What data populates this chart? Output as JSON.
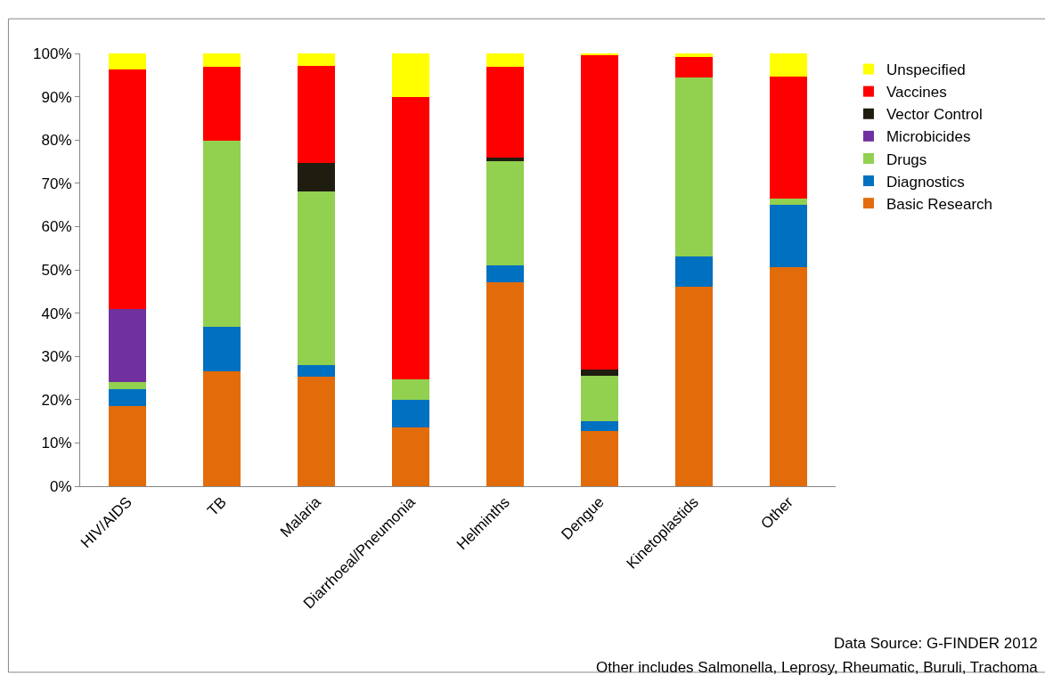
{
  "chart_data": {
    "type": "bar",
    "stacked": true,
    "categories": [
      "HIV/AIDS",
      "TB",
      "Malaria",
      "Diarrhoeal/Pneumonia",
      "Helminths",
      "Dengue",
      "Kinetoplastids",
      "Other"
    ],
    "series": [
      {
        "name": "Basic Research",
        "color": "#e36c0a",
        "values": [
          18.6,
          26.6,
          25.3,
          13.5,
          47.2,
          12.7,
          46.1,
          50.6
        ]
      },
      {
        "name": "Diagnostics",
        "color": "#0070c0",
        "values": [
          3.8,
          10.2,
          2.6,
          6.5,
          3.8,
          2.3,
          7.0,
          14.4
        ]
      },
      {
        "name": "Drugs",
        "color": "#92d050",
        "values": [
          1.6,
          43.0,
          40.3,
          4.6,
          24.2,
          10.6,
          41.4,
          1.5
        ]
      },
      {
        "name": "Microbicides",
        "color": "#7030a0",
        "values": [
          17.0,
          0,
          0,
          0,
          0,
          0,
          0,
          0
        ]
      },
      {
        "name": "Vector Control",
        "color": "#1f1c10",
        "values": [
          0,
          0,
          6.4,
          0,
          0.7,
          1.3,
          0,
          0
        ]
      },
      {
        "name": "Vaccines",
        "color": "#ff0000",
        "values": [
          55.3,
          17.2,
          22.6,
          65.3,
          21.0,
          72.8,
          4.7,
          28.2
        ]
      },
      {
        "name": "Unspecified",
        "color": "#ffff00",
        "values": [
          3.7,
          3.0,
          2.8,
          10.1,
          3.1,
          0.3,
          0.8,
          5.3
        ]
      }
    ],
    "ylim": [
      0,
      100
    ],
    "yticks": [
      {
        "value": 0,
        "label": "0%"
      },
      {
        "value": 10,
        "label": "10%"
      },
      {
        "value": 20,
        "label": "20%"
      },
      {
        "value": 30,
        "label": "30%"
      },
      {
        "value": 40,
        "label": "40%"
      },
      {
        "value": 50,
        "label": "50%"
      },
      {
        "value": 60,
        "label": "60%"
      },
      {
        "value": 70,
        "label": "70%"
      },
      {
        "value": 80,
        "label": "80%"
      },
      {
        "value": 90,
        "label": "90%"
      },
      {
        "value": 100,
        "label": "100%"
      }
    ],
    "legend": "right",
    "annotations": [
      "Data Source: G-FINDER 2012",
      "Other includes Salmonella, Leprosy, Rheumatic, Buruli, Trachoma"
    ]
  }
}
